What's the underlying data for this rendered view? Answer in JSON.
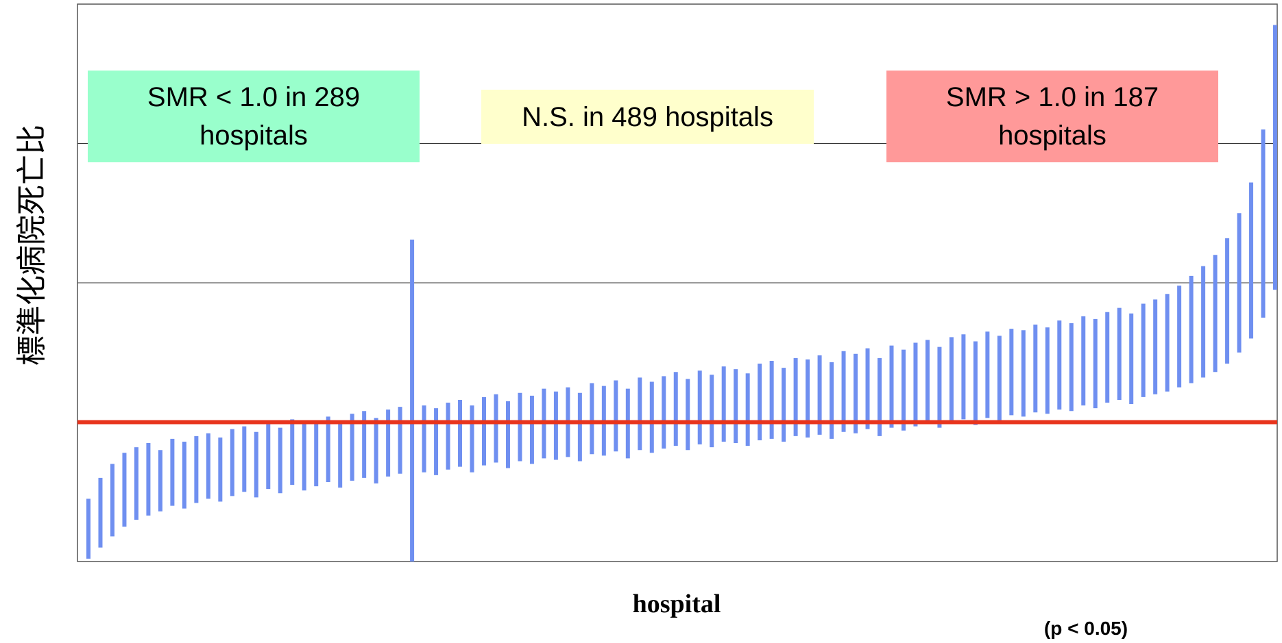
{
  "chart_data": {
    "type": "errorbar",
    "y_label": "標準化病院死亡比",
    "x_label": "hospital",
    "note": "(p < 0.05)",
    "ylim": [
      0,
      4
    ],
    "yticks": [
      0,
      1,
      2,
      3,
      4
    ],
    "grid": true,
    "reference_line": {
      "value": 1,
      "color": "#e8341c"
    },
    "series": [
      {
        "color": "#6f8ff0",
        "lower": [
          0.02,
          0.1,
          0.18,
          0.25,
          0.3,
          0.33,
          0.36,
          0.4,
          0.38,
          0.42,
          0.45,
          0.43,
          0.47,
          0.5,
          0.46,
          0.52,
          0.49,
          0.55,
          0.51,
          0.54,
          0.57,
          0.53,
          0.58,
          0.6,
          0.56,
          0.61,
          0.63,
          0.0,
          0.64,
          0.62,
          0.66,
          0.68,
          0.64,
          0.69,
          0.71,
          0.67,
          0.72,
          0.7,
          0.74,
          0.73,
          0.75,
          0.72,
          0.77,
          0.76,
          0.79,
          0.74,
          0.8,
          0.78,
          0.81,
          0.83,
          0.8,
          0.84,
          0.82,
          0.86,
          0.85,
          0.83,
          0.87,
          0.88,
          0.86,
          0.9,
          0.89,
          0.91,
          0.88,
          0.93,
          0.92,
          0.95,
          0.9,
          0.96,
          0.94,
          0.97,
          0.99,
          0.96,
          1.0,
          1.02,
          0.98,
          1.03,
          1.01,
          1.05,
          1.04,
          1.07,
          1.06,
          1.09,
          1.08,
          1.12,
          1.1,
          1.14,
          1.16,
          1.13,
          1.18,
          1.2,
          1.22,
          1.25,
          1.28,
          1.32,
          1.36,
          1.42,
          1.5,
          1.6,
          1.75,
          1.95
        ],
        "upper": [
          0.45,
          0.6,
          0.7,
          0.78,
          0.82,
          0.85,
          0.8,
          0.88,
          0.86,
          0.9,
          0.92,
          0.89,
          0.95,
          0.97,
          0.93,
          1.0,
          0.96,
          1.02,
          0.99,
          1.01,
          1.04,
          1.0,
          1.06,
          1.08,
          1.03,
          1.09,
          1.11,
          2.31,
          1.12,
          1.1,
          1.14,
          1.16,
          1.12,
          1.18,
          1.2,
          1.15,
          1.21,
          1.19,
          1.24,
          1.22,
          1.25,
          1.21,
          1.28,
          1.26,
          1.3,
          1.24,
          1.32,
          1.29,
          1.33,
          1.36,
          1.31,
          1.37,
          1.34,
          1.4,
          1.38,
          1.35,
          1.42,
          1.44,
          1.39,
          1.46,
          1.45,
          1.48,
          1.43,
          1.51,
          1.49,
          1.53,
          1.46,
          1.55,
          1.52,
          1.57,
          1.59,
          1.54,
          1.61,
          1.63,
          1.58,
          1.65,
          1.62,
          1.67,
          1.66,
          1.7,
          1.68,
          1.73,
          1.71,
          1.76,
          1.74,
          1.79,
          1.82,
          1.78,
          1.85,
          1.88,
          1.92,
          1.98,
          2.05,
          2.12,
          2.2,
          2.32,
          2.5,
          2.72,
          3.1,
          3.85
        ]
      }
    ],
    "annotations": [
      {
        "text": "SMR < 1.0 in 289 hospitals",
        "color": "#99ffcc"
      },
      {
        "text": "N.S. in 489 hospitals",
        "color": "#ffffcc"
      },
      {
        "text": "SMR > 1.0 in 187 hospitals",
        "color": "#ff9999"
      }
    ]
  }
}
